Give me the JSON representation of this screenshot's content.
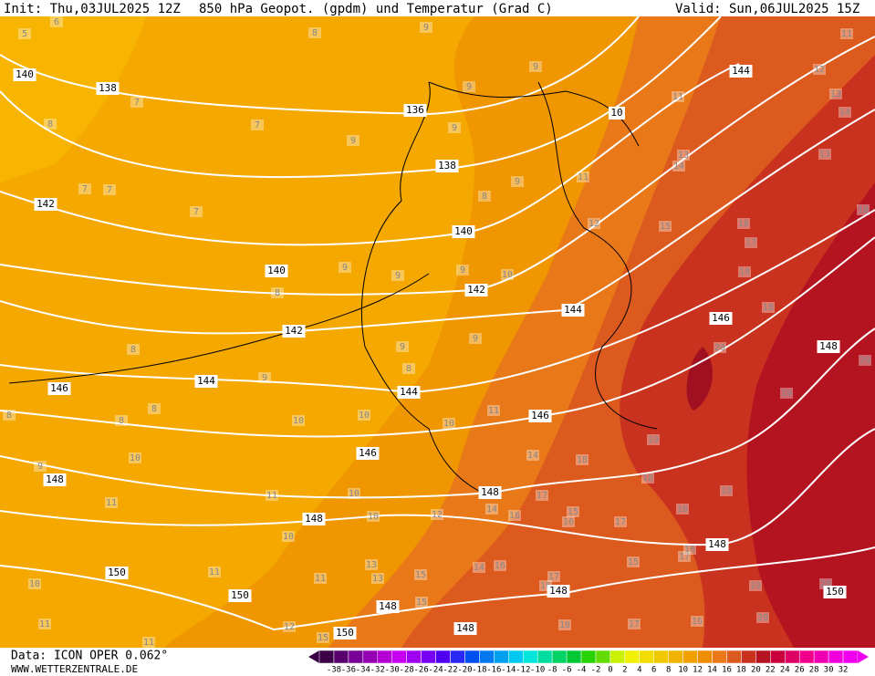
{
  "header": {
    "init": "Init: Thu,03JUL2025 12Z",
    "title": "850 hPa Geopot. (gpdm) und Temperatur (Grad C)",
    "valid": "Valid: Sun,06JUL2025 15Z"
  },
  "footer": {
    "data": "Data: ICON OPER 0.062°",
    "site": "WWW.WETTERZENTRALE.DE"
  },
  "colorbar": {
    "labels": [
      -38,
      -36,
      -34,
      -32,
      -30,
      -28,
      -26,
      -24,
      -22,
      -20,
      -18,
      -16,
      -14,
      -12,
      -10,
      -8,
      -6,
      -4,
      -2,
      0,
      2,
      4,
      6,
      8,
      10,
      12,
      14,
      16,
      18,
      20,
      22,
      24,
      26,
      28,
      30,
      32
    ]
  },
  "map": {
    "height_labels": [
      140,
      138,
      136,
      138,
      142,
      140,
      140,
      142,
      144,
      142,
      144,
      146,
      144,
      146,
      146,
      148,
      148,
      148,
      148,
      150,
      150,
      148,
      150,
      148,
      148,
      146,
      148,
      150,
      144,
      10
    ],
    "temperature_labels": [
      5,
      6,
      8,
      9,
      11,
      12,
      13,
      14,
      7,
      7,
      8,
      9,
      9,
      9,
      9,
      7,
      7,
      7,
      8,
      9,
      11,
      12,
      13,
      14,
      11,
      13,
      15,
      16,
      17,
      18,
      18,
      18,
      20,
      20,
      9,
      9,
      8,
      9,
      10,
      9,
      9,
      8,
      8,
      9,
      8,
      8,
      8,
      10,
      10,
      10,
      11,
      10,
      9,
      11,
      11,
      10,
      10,
      10,
      12,
      14,
      18,
      19,
      19,
      18,
      18,
      18,
      17,
      14,
      15,
      16,
      16,
      17,
      15,
      17,
      16,
      15,
      13,
      11,
      11,
      10,
      11,
      11,
      12,
      15,
      15,
      14,
      16,
      17,
      16,
      19,
      20,
      20,
      16,
      17,
      18,
      13
    ]
  }
}
